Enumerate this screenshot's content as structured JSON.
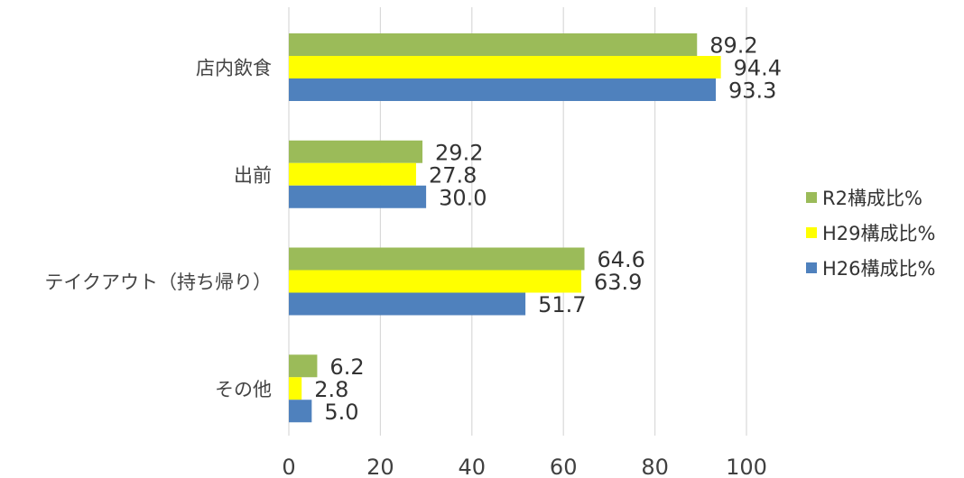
{
  "chart_data": {
    "type": "bar",
    "orientation": "horizontal",
    "categories": [
      "店内飲食",
      "出前",
      "テイクアウト（持ち帰り）",
      "その他"
    ],
    "series": [
      {
        "name": "R2構成比%",
        "color": "#9BBB59",
        "values": [
          89.2,
          29.2,
          64.6,
          6.2
        ]
      },
      {
        "name": "H29構成比%",
        "color": "#FFFF00",
        "values": [
          94.4,
          27.8,
          63.9,
          2.8
        ]
      },
      {
        "name": "H26構成比%",
        "color": "#4F81BD",
        "values": [
          93.3,
          30.0,
          51.7,
          5.0
        ]
      }
    ],
    "xlim": [
      0,
      100
    ],
    "xticks": [
      0,
      20,
      40,
      60,
      80,
      100
    ],
    "grid": "vertical",
    "legend_position": "right"
  }
}
